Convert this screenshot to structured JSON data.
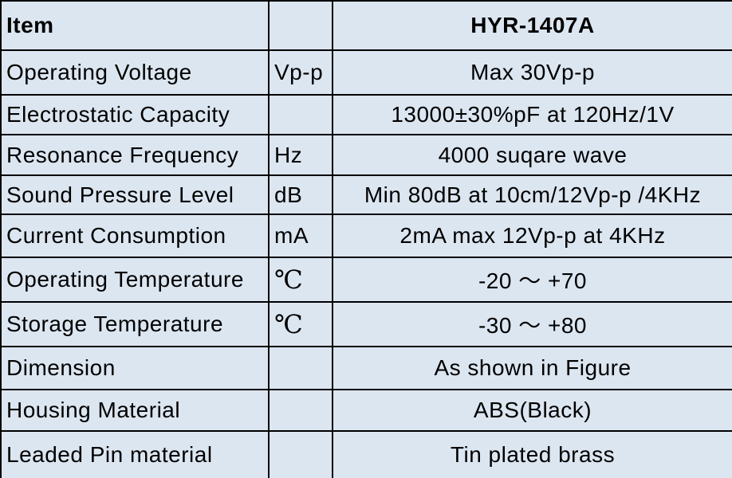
{
  "table": {
    "header": {
      "item": "Item",
      "model": "HYR-1407A"
    },
    "rows": [
      {
        "item": "Operating Voltage",
        "unit": "Vp-p",
        "spec": "Max 30Vp-p"
      },
      {
        "item": "Electrostatic Capacity",
        "spec": "13000±30%pF at 120Hz/1V"
      },
      {
        "item": "Resonance Frequency",
        "unit": "Hz",
        "spec": "4000 suqare wave"
      },
      {
        "item": "Sound Pressure Level",
        "unit": "dB",
        "spec": "Min 80dB at 10cm/12Vp-p /4KHz"
      },
      {
        "item": "Current Consumption",
        "unit": "mA",
        "spec": "2mA max 12Vp-p at 4KHz"
      },
      {
        "item": "Operating Temperature",
        "unit": "℃",
        "spec": "-20 ～ +70"
      },
      {
        "item": "Storage Temperature",
        "unit": "℃",
        "spec": "-30 ～ +80"
      },
      {
        "item": "Dimension",
        "spec": "As shown in Figure"
      },
      {
        "item": "Housing Material",
        "spec": "ABS(Black)"
      },
      {
        "item": "Leaded Pin material",
        "spec": "Tin plated brass"
      }
    ]
  }
}
